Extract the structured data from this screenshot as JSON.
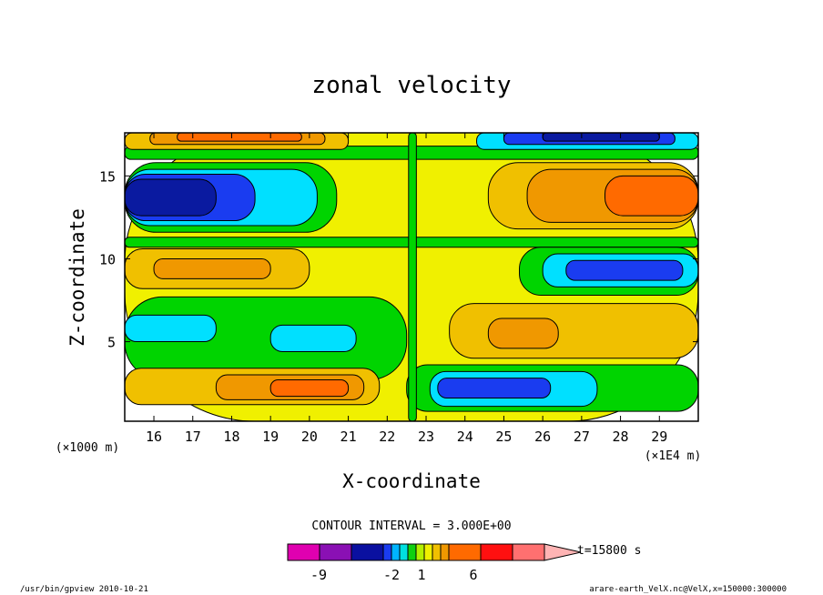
{
  "chart_data": {
    "type": "heatmap",
    "title": "zonal velocity",
    "xlabel": "X-coordinate",
    "ylabel": "Z-coordinate",
    "xlim": [
      15.25,
      30.0
    ],
    "ylim": [
      0.2,
      17.6
    ],
    "x_ticks": [
      16,
      17,
      18,
      19,
      20,
      21,
      22,
      23,
      24,
      25,
      26,
      27,
      28,
      29
    ],
    "y_ticks": [
      5,
      10,
      15
    ],
    "x_unit_left": "(×1000 m)",
    "x_unit_right": "(×1E4 m)",
    "contour_note": "CONTOUR INTERVAL = 3.000E+00",
    "colorbar": {
      "colors": [
        "#e000b0",
        "#8a10b4",
        "#0a10a0",
        "#1a3cf0",
        "#00b4ff",
        "#00e0e0",
        "#10d010",
        "#b4f000",
        "#f0f000",
        "#f0c000",
        "#f09800",
        "#ff6a00",
        "#ff1010",
        "#ff7070",
        "#ffb4b4"
      ],
      "tick_labels": [
        "-9",
        "-2",
        "1",
        "6"
      ],
      "time_label": "t=15800 s"
    },
    "fields": {
      "palette": {
        "dark_blue": "#0a1aa0",
        "blue": "#1a3cf0",
        "cyan": "#00e0ff",
        "green": "#00d400",
        "light_green": "#b4f000",
        "yellow": "#f0f000",
        "light_orange": "#f0c000",
        "orange": "#f09800",
        "dark_orange": "#ff6a00",
        "red": "#ff1010"
      },
      "regions": [
        {
          "level": "yellow",
          "x": [
            15.25,
            30.0
          ],
          "z": [
            0.2,
            17.6
          ]
        },
        {
          "level": "green",
          "x": [
            15.25,
            30.0
          ],
          "z": [
            16.0,
            16.8
          ]
        },
        {
          "level": "light_orange",
          "x": [
            15.25,
            21.0
          ],
          "z": [
            16.6,
            17.6
          ]
        },
        {
          "level": "orange",
          "x": [
            15.9,
            20.4
          ],
          "z": [
            16.9,
            17.6
          ]
        },
        {
          "level": "dark_orange",
          "x": [
            16.6,
            19.8
          ],
          "z": [
            17.1,
            17.6
          ]
        },
        {
          "level": "cyan",
          "x": [
            24.3,
            30.0
          ],
          "z": [
            16.6,
            17.6
          ]
        },
        {
          "level": "blue",
          "x": [
            25.0,
            29.4
          ],
          "z": [
            16.9,
            17.6
          ]
        },
        {
          "level": "dark_blue",
          "x": [
            26.0,
            29.0
          ],
          "z": [
            17.1,
            17.6
          ]
        },
        {
          "level": "green",
          "x": [
            15.25,
            20.7
          ],
          "z": [
            11.6,
            15.8
          ]
        },
        {
          "level": "cyan",
          "x": [
            15.25,
            20.2
          ],
          "z": [
            12.0,
            15.4
          ]
        },
        {
          "level": "blue",
          "x": [
            15.25,
            18.6
          ],
          "z": [
            12.3,
            15.1
          ]
        },
        {
          "level": "dark_blue",
          "x": [
            15.25,
            17.6
          ],
          "z": [
            12.6,
            14.8
          ]
        },
        {
          "level": "light_orange",
          "x": [
            24.6,
            30.0
          ],
          "z": [
            11.8,
            15.8
          ]
        },
        {
          "level": "orange",
          "x": [
            25.6,
            30.0
          ],
          "z": [
            12.2,
            15.4
          ]
        },
        {
          "level": "dark_orange",
          "x": [
            27.6,
            30.0
          ],
          "z": [
            12.6,
            15.0
          ]
        },
        {
          "level": "green",
          "x": [
            15.25,
            30.0
          ],
          "z": [
            10.7,
            11.3
          ]
        },
        {
          "level": "light_orange",
          "x": [
            15.25,
            20.0
          ],
          "z": [
            8.2,
            10.6
          ]
        },
        {
          "level": "orange",
          "x": [
            16.0,
            19.0
          ],
          "z": [
            8.8,
            10.0
          ]
        },
        {
          "level": "green",
          "x": [
            25.4,
            30.0
          ],
          "z": [
            7.8,
            10.7
          ]
        },
        {
          "level": "cyan",
          "x": [
            26.0,
            30.0
          ],
          "z": [
            8.3,
            10.3
          ]
        },
        {
          "level": "blue",
          "x": [
            26.6,
            29.6
          ],
          "z": [
            8.7,
            9.9
          ]
        },
        {
          "level": "green",
          "x": [
            15.25,
            22.5
          ],
          "z": [
            2.7,
            7.7
          ]
        },
        {
          "level": "cyan",
          "x": [
            15.25,
            17.6
          ],
          "z": [
            5.0,
            6.6
          ]
        },
        {
          "level": "cyan",
          "x": [
            19.0,
            21.2
          ],
          "z": [
            4.4,
            6.0
          ]
        },
        {
          "level": "light_orange",
          "x": [
            23.6,
            30.0
          ],
          "z": [
            4.0,
            7.3
          ]
        },
        {
          "level": "orange",
          "x": [
            24.6,
            26.4
          ],
          "z": [
            4.6,
            6.4
          ]
        },
        {
          "level": "light_orange",
          "x": [
            15.25,
            21.8
          ],
          "z": [
            1.2,
            3.4
          ]
        },
        {
          "level": "orange",
          "x": [
            17.6,
            21.4
          ],
          "z": [
            1.5,
            3.0
          ]
        },
        {
          "level": "dark_orange",
          "x": [
            19.0,
            21.0
          ],
          "z": [
            1.7,
            2.7
          ]
        },
        {
          "level": "green",
          "x": [
            22.5,
            30.0
          ],
          "z": [
            0.8,
            3.6
          ]
        },
        {
          "level": "cyan",
          "x": [
            23.1,
            27.4
          ],
          "z": [
            1.1,
            3.2
          ]
        },
        {
          "level": "blue",
          "x": [
            23.3,
            26.2
          ],
          "z": [
            1.6,
            2.8
          ]
        },
        {
          "level": "green",
          "x": [
            22.55,
            22.75
          ],
          "z": [
            0.2,
            17.6
          ]
        }
      ]
    }
  },
  "footer": {
    "left": "/usr/bin/gpview   2010-10-21",
    "right": "arare-earth_VelX.nc@VelX,x=150000:300000"
  }
}
